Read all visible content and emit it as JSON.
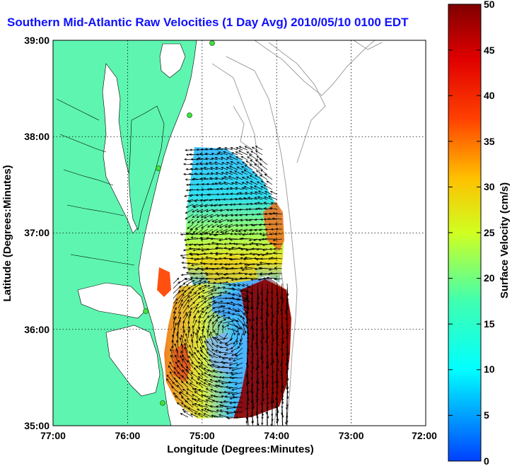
{
  "title": "Southern Mid-Atlantic Raw Velocities (1 Day Avg) 2010/05/10 0100 EDT",
  "map": {
    "xlabel": "Longitude (Degrees:Minutes)",
    "ylabel": "Latitude (Degrees:Minutes)",
    "x_ticks": [
      "77:00",
      "76:00",
      "75:00",
      "74:00",
      "73:00",
      "72:00"
    ],
    "y_ticks": [
      "39:00",
      "38:00",
      "37:00",
      "36:00",
      "35:00"
    ],
    "land_color": "#5ef5b0",
    "bathymetry_color": "#a0a0a0"
  },
  "colorbar": {
    "label": "Surface Velocity (cm/s)",
    "ticks": [
      "50",
      "45",
      "40",
      "35",
      "30",
      "25",
      "20",
      "15",
      "10",
      "5",
      "0"
    ],
    "min": 0,
    "max": 50,
    "colormap": "jet"
  }
}
